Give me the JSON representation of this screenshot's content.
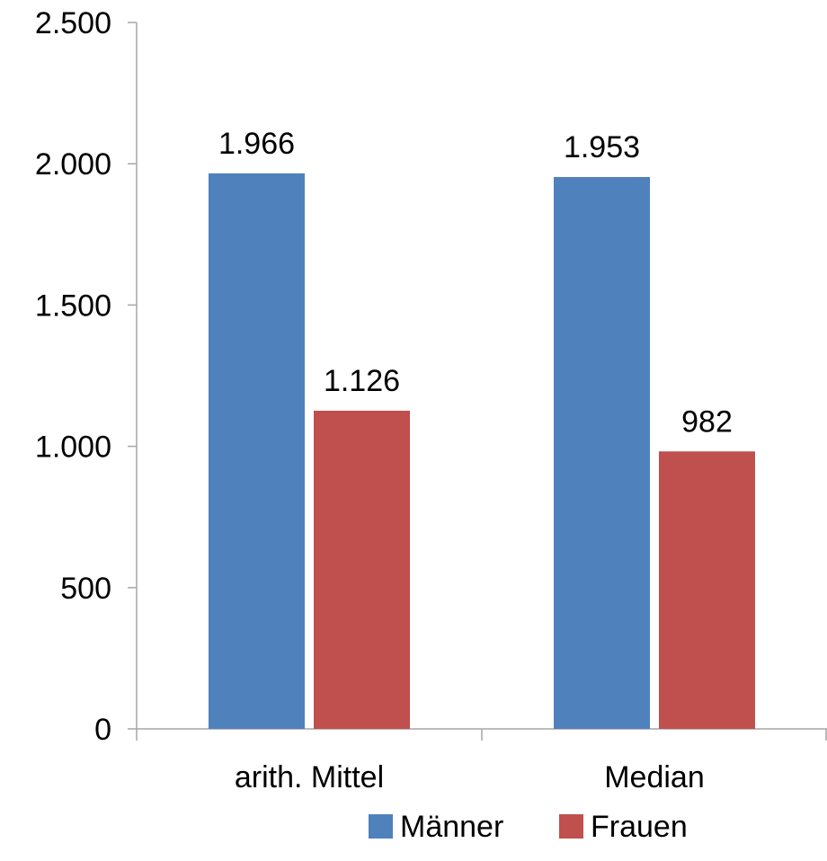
{
  "chart_data": {
    "type": "bar",
    "title": "",
    "xlabel": "",
    "ylabel": "",
    "categories": [
      "arith. Mittel",
      "Median"
    ],
    "series": [
      {
        "name": "Männer",
        "color": "#4F81BD",
        "values": [
          1966,
          1953
        ],
        "labels": [
          "1.966",
          "1.953"
        ]
      },
      {
        "name": "Frauen",
        "color": "#C0504D",
        "values": [
          1126,
          982
        ],
        "labels": [
          "1.126",
          "982"
        ]
      }
    ],
    "ylim": [
      0,
      2500
    ],
    "yticks": [
      0,
      500,
      1000,
      1500,
      2000,
      2500
    ],
    "ytick_labels": [
      "0",
      "500",
      "1.000",
      "1.500",
      "2.000",
      "2.500"
    ],
    "grid": false,
    "legend": "bottom",
    "axis_color": "#A6A6A6"
  }
}
